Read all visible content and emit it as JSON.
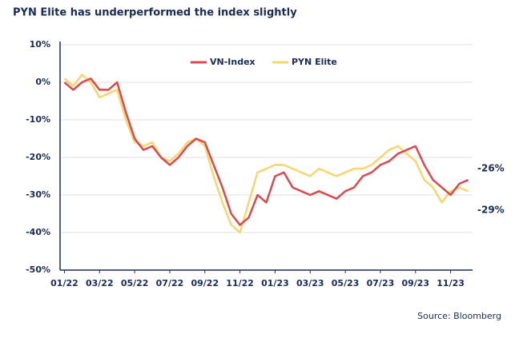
{
  "chart_data": {
    "type": "line",
    "title": "PYN Elite has underperformed the index slightly",
    "source": "Source: Bloomberg",
    "annotations": [
      "-26%",
      "-29%"
    ],
    "categories": [
      "01/22",
      null,
      null,
      null,
      "03/22",
      null,
      null,
      null,
      "05/22",
      null,
      null,
      null,
      "07/22",
      null,
      null,
      null,
      "09/22",
      null,
      null,
      null,
      "11/22",
      null,
      null,
      null,
      "01/23",
      null,
      null,
      null,
      "03/23",
      null,
      null,
      null,
      "05/23",
      null,
      null,
      null,
      "07/23",
      null,
      null,
      null,
      "09/23",
      null,
      null,
      null,
      "11/23",
      null,
      null
    ],
    "series": [
      {
        "name": "VN-Index",
        "color": "#e0474c",
        "values": [
          0,
          -2,
          0,
          1,
          -2,
          -2,
          0,
          -8,
          -15,
          -18,
          -17,
          -20,
          -22,
          -20,
          -17,
          -15,
          -16,
          -22,
          -28,
          -35,
          -38,
          -36,
          -30,
          -32,
          -25,
          -24,
          -28,
          -29,
          -30,
          -29,
          -30,
          -31,
          -29,
          -28,
          -25,
          -24,
          -22,
          -21,
          -19,
          -18,
          -17,
          -22,
          -26,
          -28,
          -30,
          -27,
          -26
        ]
      },
      {
        "name": "PYN Elite",
        "color": "#f8d66d",
        "values": [
          1,
          -1,
          2,
          0,
          -4,
          -3,
          -2,
          -10,
          -16,
          -17,
          -16,
          -20,
          -21,
          -19,
          -16,
          -15,
          -17,
          -25,
          -32,
          -38,
          -40,
          -32,
          -24,
          -23,
          -22,
          -22,
          -23,
          -24,
          -25,
          -23,
          -24,
          -25,
          -24,
          -23,
          -23,
          -22,
          -20,
          -18,
          -17,
          -19,
          -21,
          -26,
          -28,
          -32,
          -29,
          -28,
          -29
        ]
      }
    ],
    "ylim": [
      -50,
      10
    ],
    "yticks": [
      {
        "value": 10,
        "label": "10%"
      },
      {
        "value": 0,
        "label": "0%"
      },
      {
        "value": -10,
        "label": "-10%"
      },
      {
        "value": -20,
        "label": "-20%"
      },
      {
        "value": -30,
        "label": "-30%"
      },
      {
        "value": -40,
        "label": "-40%"
      },
      {
        "value": -50,
        "label": "-50%"
      }
    ],
    "grid": true,
    "legend": "top"
  }
}
